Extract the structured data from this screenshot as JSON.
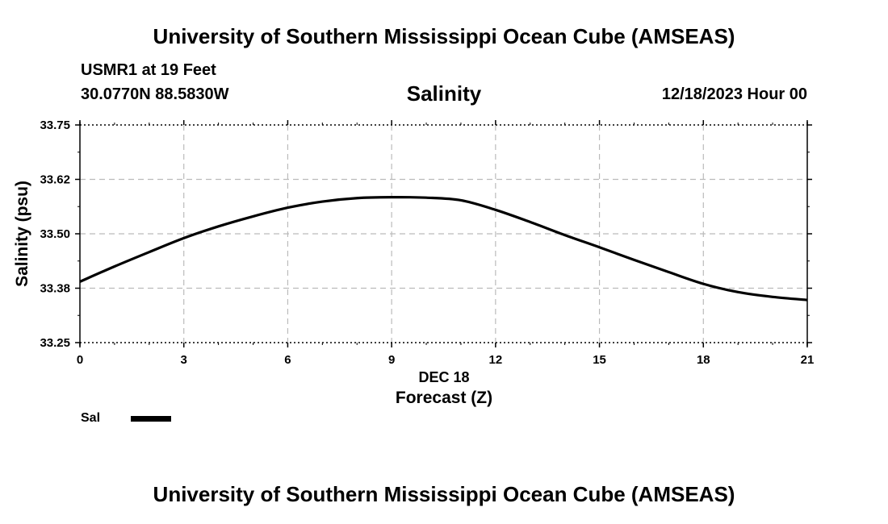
{
  "header": {
    "title": "University of Southern Mississippi Ocean Cube (AMSEAS)",
    "station": "USMR1 at 19 Feet",
    "coordinates": "30.0770N  88.5830W",
    "datetime": "12/18/2023 Hour 00"
  },
  "footer": {
    "title": "University of Southern Mississippi Ocean Cube (AMSEAS)"
  },
  "chart_data": {
    "type": "line",
    "title": "Salinity",
    "xlabel": "Forecast (Z)",
    "xlabel_date": "DEC 18",
    "ylabel": "Salinity (psu)",
    "xlim": [
      0,
      21
    ],
    "ylim": [
      33.25,
      33.75
    ],
    "xticks": [
      0,
      3,
      6,
      9,
      12,
      15,
      18,
      21
    ],
    "yticks": [
      33.25,
      33.375,
      33.5,
      33.625,
      33.75
    ],
    "ytick_labels": [
      "33.25",
      "33.38",
      "33.50",
      "33.62",
      "33.75"
    ],
    "grid": true,
    "legend_position": "bottom-left",
    "series": [
      {
        "name": "Sal",
        "color": "#000000",
        "x": [
          0,
          1,
          2,
          3,
          4,
          5,
          6,
          7,
          8,
          9,
          10,
          11,
          12,
          13,
          14,
          15,
          16,
          17,
          18,
          19,
          20,
          21
        ],
        "values": [
          33.39,
          33.425,
          33.458,
          33.49,
          33.517,
          33.54,
          33.56,
          33.574,
          33.582,
          33.584,
          33.583,
          33.577,
          33.555,
          33.527,
          33.497,
          33.469,
          33.44,
          33.412,
          33.385,
          33.366,
          33.355,
          33.348
        ]
      }
    ]
  }
}
